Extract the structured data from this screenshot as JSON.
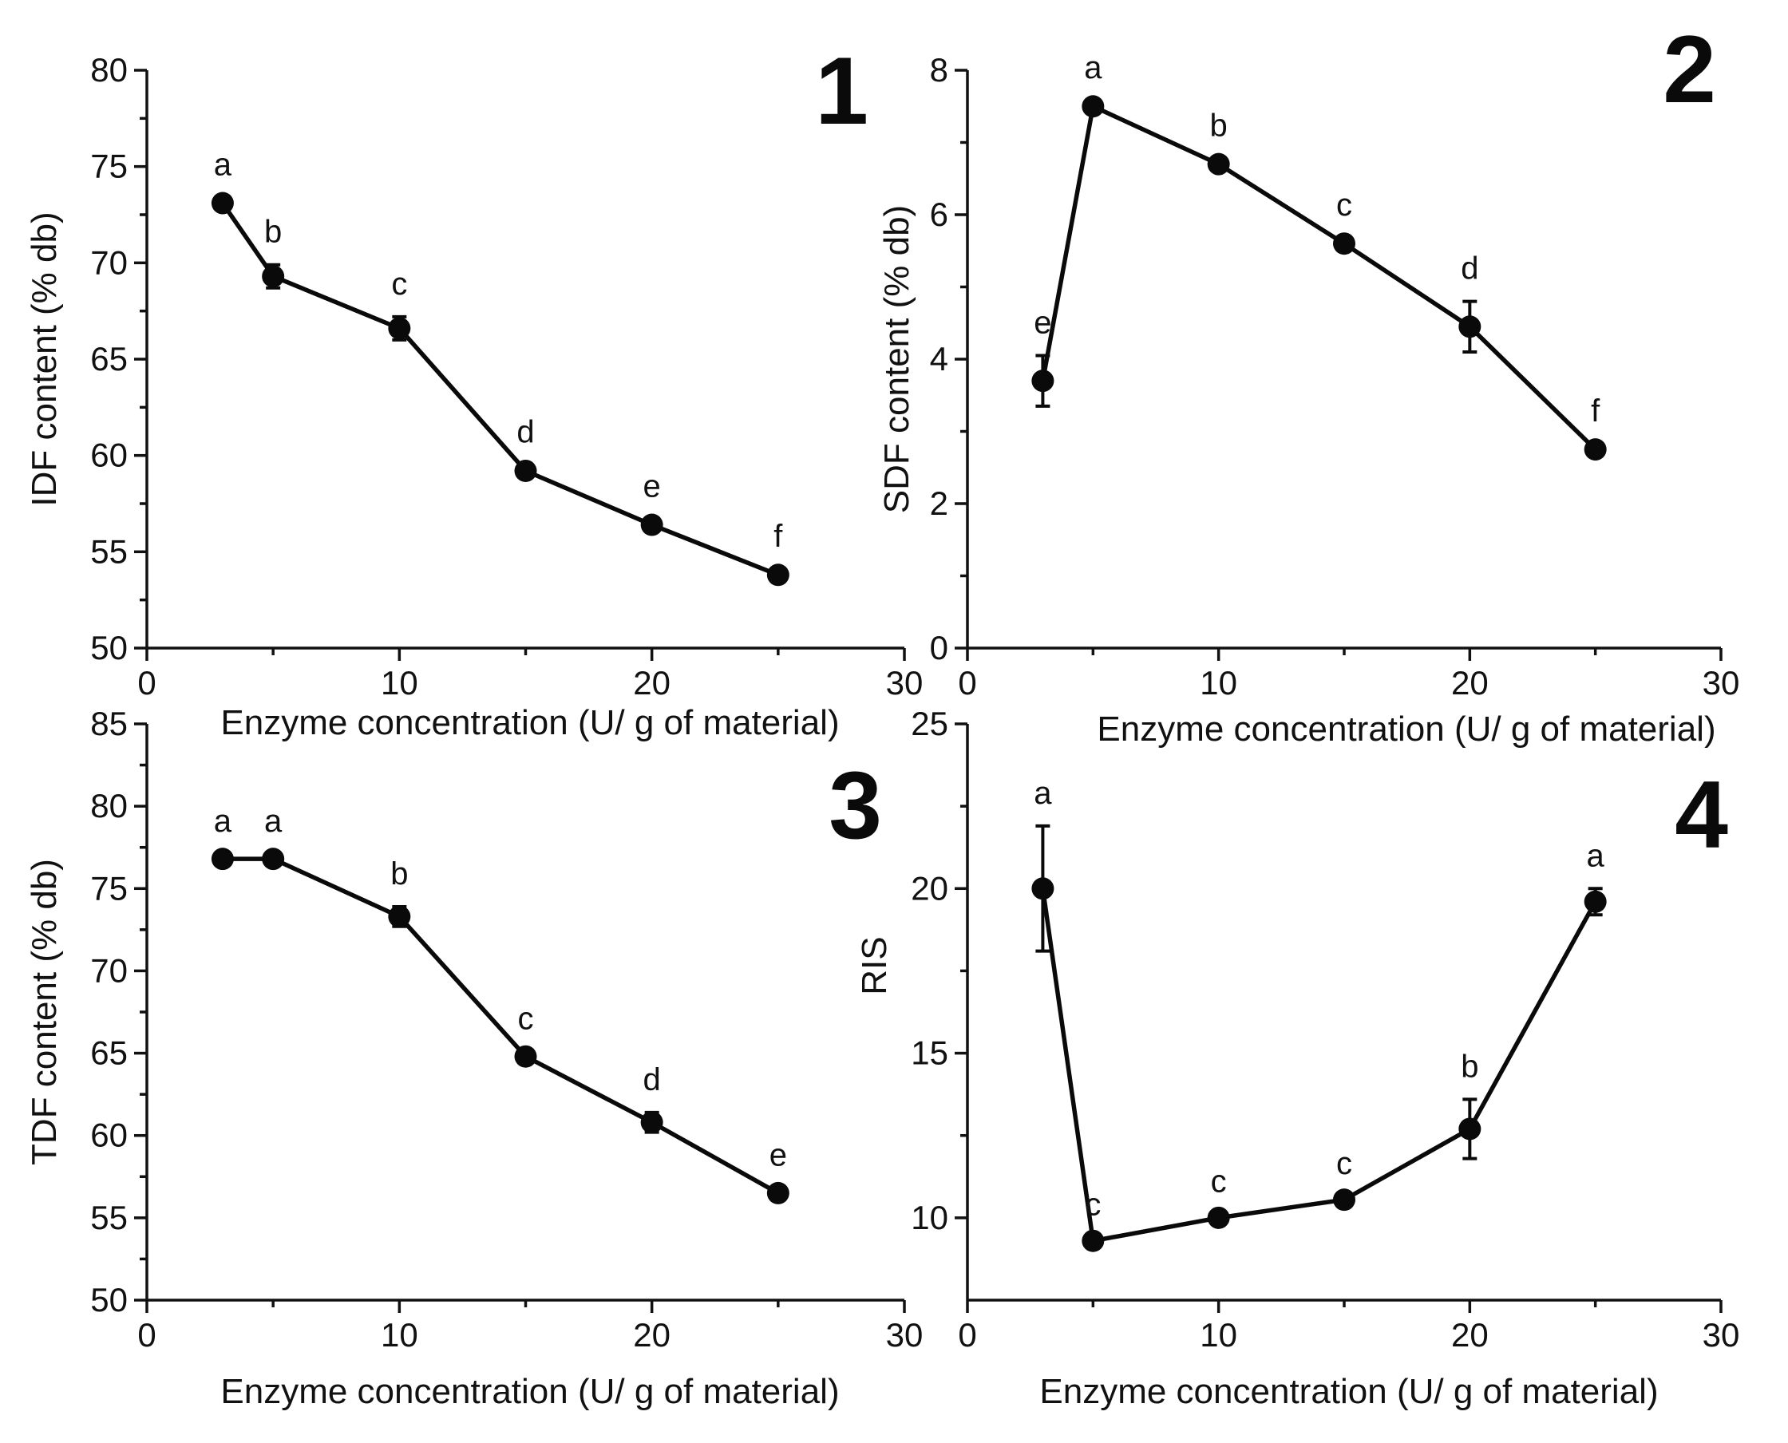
{
  "chart_data": [
    {
      "type": "line",
      "panel_label": "1",
      "xlabel": "Enzyme concentration (U/ g of material)",
      "ylabel": "IDF content (% db)",
      "xlim": [
        0,
        30
      ],
      "ylim": [
        50,
        80
      ],
      "xticks": [
        0,
        10,
        20,
        30
      ],
      "yticks": [
        50,
        55,
        60,
        65,
        70,
        75,
        80
      ],
      "x": [
        3,
        5,
        10,
        15,
        20,
        25
      ],
      "y": [
        73.1,
        69.3,
        66.6,
        59.2,
        56.4,
        53.8
      ],
      "error": [
        0.3,
        0.6,
        0.6,
        0.3,
        0.3,
        0.3
      ],
      "point_labels": [
        "a",
        "b",
        "c",
        "d",
        "e",
        "f"
      ]
    },
    {
      "type": "line",
      "panel_label": "2",
      "xlabel": "Enzyme concentration (U/ g of material)",
      "ylabel": "SDF content (% db)",
      "xlim": [
        0,
        30
      ],
      "ylim": [
        0,
        8
      ],
      "xticks": [
        0,
        10,
        20,
        30
      ],
      "yticks": [
        0,
        2,
        4,
        6,
        8
      ],
      "x": [
        3,
        5,
        10,
        15,
        20,
        25
      ],
      "y": [
        3.7,
        7.5,
        6.7,
        5.6,
        4.45,
        2.75
      ],
      "error": [
        0.35,
        0.08,
        0.08,
        0.08,
        0.35,
        0.08
      ],
      "point_labels": [
        "e",
        "a",
        "b",
        "c",
        "d",
        "f"
      ]
    },
    {
      "type": "line",
      "panel_label": "3",
      "xlabel": "Enzyme concentration (U/ g of material)",
      "ylabel": "TDF content (% db)",
      "xlim": [
        0,
        30
      ],
      "ylim": [
        50,
        85
      ],
      "xticks": [
        0,
        10,
        20,
        30
      ],
      "yticks": [
        50,
        55,
        60,
        65,
        70,
        75,
        80,
        85
      ],
      "x": [
        3,
        5,
        10,
        15,
        20,
        25
      ],
      "y": [
        76.8,
        76.8,
        73.3,
        64.8,
        60.8,
        56.5
      ],
      "error": [
        0.3,
        0.3,
        0.6,
        0.3,
        0.6,
        0.3
      ],
      "point_labels": [
        "a",
        "a",
        "b",
        "c",
        "d",
        "e"
      ]
    },
    {
      "type": "line",
      "panel_label": "4",
      "xlabel": "Enzyme concentration (U/ g of material)",
      "ylabel": "RIS",
      "xlim": [
        0,
        30
      ],
      "ylim": [
        7.5,
        25
      ],
      "xticks": [
        0,
        10,
        20,
        30
      ],
      "yticks": [
        10,
        15,
        20,
        25
      ],
      "x": [
        3,
        5,
        10,
        15,
        20,
        25
      ],
      "y": [
        20.0,
        9.3,
        10.0,
        10.55,
        12.7,
        19.6
      ],
      "error": [
        1.9,
        0.1,
        0.1,
        0.1,
        0.9,
        0.4
      ],
      "point_labels": [
        "a",
        "c",
        "c",
        "c",
        "b",
        "a"
      ]
    }
  ]
}
